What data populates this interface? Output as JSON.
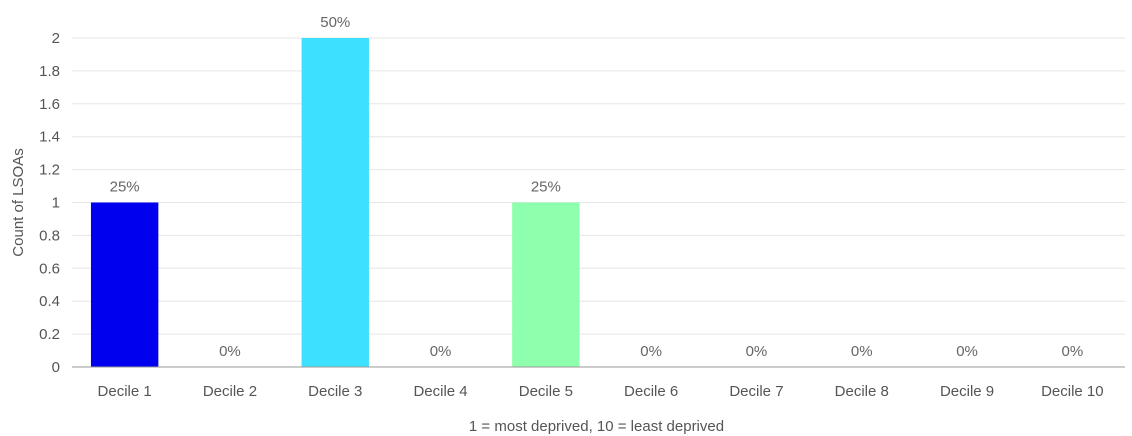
{
  "chart_data": {
    "type": "bar",
    "categories": [
      "Decile 1",
      "Decile 2",
      "Decile 3",
      "Decile 4",
      "Decile 5",
      "Decile 6",
      "Decile 7",
      "Decile 8",
      "Decile 9",
      "Decile 10"
    ],
    "values": [
      1,
      0,
      2,
      0,
      1,
      0,
      0,
      0,
      0,
      0
    ],
    "data_labels": [
      "25%",
      "0%",
      "50%",
      "0%",
      "25%",
      "0%",
      "0%",
      "0%",
      "0%",
      "0%"
    ],
    "colors": [
      "#0000ee",
      "#5a5aff",
      "#3ee0ff",
      "#7ff0ff",
      "#8effac",
      "#b6ffa0",
      "#e8ff90",
      "#ffe680",
      "#ffc070",
      "#ff9a60"
    ],
    "xlabel": "1 = most deprived, 10 = least deprived",
    "ylabel": "Count of LSOAs",
    "ylim": [
      0,
      2
    ],
    "yticks": [
      0,
      0.2,
      0.4,
      0.6,
      0.8,
      1,
      1.2,
      1.4,
      1.6,
      1.8,
      2
    ],
    "grid": true,
    "legend": "none"
  }
}
